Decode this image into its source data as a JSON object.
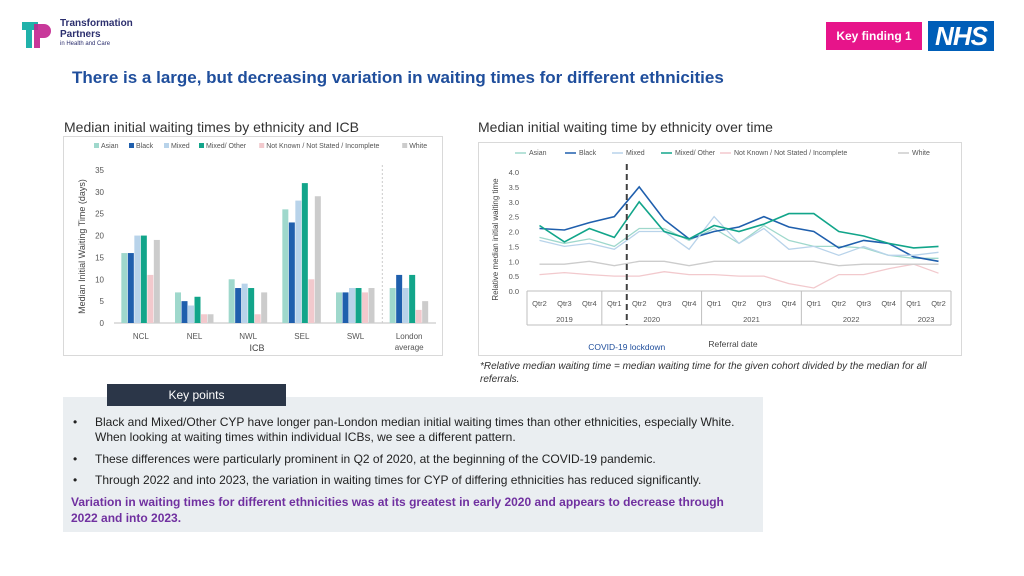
{
  "logo": {
    "name_line1": "Transformation",
    "name_line2": "Partners",
    "tagline": "in Health and Care"
  },
  "badge": {
    "label": "Key finding 1"
  },
  "nhs_logo": "NHS",
  "colors": {
    "asian": "#9fd8cc",
    "black": "#1f5fad",
    "mixed": "#b8d3ea",
    "mixed_other": "#12a58a",
    "not_known": "#f2c9cd",
    "white": "#cccccc",
    "title": "#1f4e9c",
    "badge": "#e7148a",
    "conclusion": "#7030a0"
  },
  "page_title": "There is a large, but decreasing variation in waiting times for different ethnicities",
  "left_subtitle": "Median initial waiting times by ethnicity and ICB",
  "right_subtitle": "Median initial waiting time by ethnicity over time",
  "chart_data": [
    {
      "type": "bar",
      "title": "Median initial waiting times by ethnicity and ICB",
      "xlabel": "ICB",
      "ylabel": "Median Initial Waiting Time (days)",
      "ylim": [
        0,
        35
      ],
      "yticks": [
        "0",
        "5",
        "10",
        "15",
        "20",
        "25",
        "30",
        "35"
      ],
      "categories": [
        "NCL",
        "NEL",
        "NWL",
        "SEL",
        "SWL",
        "London average"
      ],
      "category_lines": [
        [
          "NCL"
        ],
        [
          "NEL"
        ],
        [
          "NWL"
        ],
        [
          "SEL"
        ],
        [
          "SWL"
        ],
        [
          "London",
          "average"
        ]
      ],
      "series": [
        {
          "name": "Asian",
          "key": "asian",
          "values": [
            16,
            7,
            10,
            26,
            7,
            8
          ]
        },
        {
          "name": "Black",
          "key": "black",
          "values": [
            16,
            5,
            8,
            23,
            7,
            11
          ]
        },
        {
          "name": "Mixed",
          "key": "mixed",
          "values": [
            20,
            4,
            9,
            28,
            8,
            8
          ]
        },
        {
          "name": "Mixed/ Other",
          "key": "mixed_other",
          "values": [
            20,
            6,
            8,
            32,
            8,
            11
          ]
        },
        {
          "name": "Not Known / Not Stated / Incomplete",
          "key": "not_known",
          "values": [
            11,
            2,
            2,
            10,
            7,
            3
          ]
        },
        {
          "name": "White",
          "key": "white",
          "values": [
            19,
            2,
            7,
            29,
            8,
            5
          ]
        }
      ],
      "legend": "top"
    },
    {
      "type": "line",
      "title": "Median initial waiting time by ethnicity over time",
      "xlabel": "Referral date",
      "ylabel": "Relative median initial waiting time",
      "ylim": [
        0,
        4
      ],
      "yticks": [
        "0.0",
        "0.5",
        "1.0",
        "1.5",
        "2.0",
        "2.5",
        "3.0",
        "3.5",
        "4.0"
      ],
      "x": [
        "Qtr2",
        "Qtr3",
        "Qtr4",
        "Qtr1",
        "Qtr2",
        "Qtr3",
        "Qtr4",
        "Qtr1",
        "Qtr2",
        "Qtr3",
        "Qtr4",
        "Qtr1",
        "Qtr2",
        "Qtr3",
        "Qtr4",
        "Qtr1",
        "Qtr2"
      ],
      "years": [
        {
          "label": "2019",
          "start": 0,
          "end": 2
        },
        {
          "label": "2020",
          "start": 3,
          "end": 6
        },
        {
          "label": "2021",
          "start": 7,
          "end": 10
        },
        {
          "label": "2022",
          "start": 11,
          "end": 14
        },
        {
          "label": "2023",
          "start": 15,
          "end": 16
        }
      ],
      "annotation": {
        "label": "COVID-19 lockdown",
        "index": 3.5
      },
      "series": [
        {
          "name": "Asian",
          "key": "asian",
          "values": [
            1.8,
            1.6,
            1.75,
            1.5,
            2.1,
            2.1,
            1.7,
            2.1,
            1.6,
            2.2,
            1.7,
            1.5,
            1.5,
            1.45,
            1.2,
            1.1,
            1.1
          ]
        },
        {
          "name": "Black",
          "key": "black",
          "values": [
            2.1,
            2.05,
            2.3,
            2.5,
            3.5,
            2.4,
            1.75,
            2.0,
            2.15,
            2.5,
            2.15,
            2.0,
            1.45,
            1.7,
            1.6,
            1.15,
            1.0
          ]
        },
        {
          "name": "Mixed",
          "key": "mixed",
          "values": [
            1.7,
            1.5,
            1.6,
            1.4,
            2.0,
            2.0,
            1.4,
            2.5,
            1.6,
            2.1,
            1.4,
            1.5,
            1.2,
            1.5,
            1.2,
            1.2,
            1.3
          ]
        },
        {
          "name": "Mixed/ Other",
          "key": "mixed_other",
          "values": [
            2.2,
            1.65,
            2.1,
            1.8,
            3.0,
            2.0,
            1.75,
            2.2,
            2.0,
            2.25,
            2.6,
            2.6,
            2.0,
            1.85,
            1.6,
            1.45,
            1.5
          ]
        },
        {
          "name": "Not Known / Not Stated / Incomplete",
          "key": "not_known",
          "values": [
            0.55,
            0.62,
            0.55,
            0.5,
            0.5,
            0.65,
            0.55,
            0.55,
            0.5,
            0.5,
            0.25,
            0.1,
            0.55,
            0.55,
            0.75,
            0.9,
            0.6
          ]
        },
        {
          "name": "White",
          "key": "white",
          "values": [
            0.9,
            0.9,
            1.0,
            0.85,
            1.0,
            1.0,
            0.85,
            1.0,
            1.0,
            1.0,
            1.0,
            1.0,
            0.85,
            0.9,
            0.9,
            0.9,
            0.9
          ]
        }
      ],
      "legend": "top"
    }
  ],
  "footnote": "*Relative median waiting time = median waiting time for the given cohort divided by the median for all referrals.",
  "key_points": {
    "heading": "Key points",
    "bullet_symbol": "•",
    "bullets": [
      "Black and Mixed/Other CYP have longer pan-London median initial waiting times than other ethnicities, especially White. When looking at waiting times within individual ICBs, we see a different pattern.",
      "These differences were particularly prominent in Q2 of 2020, at the beginning of the COVID-19 pandemic.",
      "Through 2022 and into 2023, the variation in waiting times for CYP of differing ethnicities has reduced significantly."
    ],
    "conclusion": "Variation in waiting times for different ethnicities was at its greatest in early 2020 and appears to decrease through 2022 and into 2023."
  }
}
